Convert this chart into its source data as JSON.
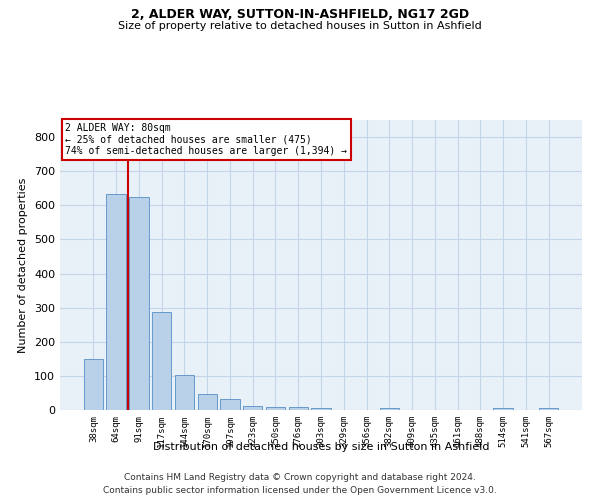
{
  "title": "2, ALDER WAY, SUTTON-IN-ASHFIELD, NG17 2GD",
  "subtitle": "Size of property relative to detached houses in Sutton in Ashfield",
  "xlabel": "Distribution of detached houses by size in Sutton in Ashfield",
  "ylabel": "Number of detached properties",
  "footer_line1": "Contains HM Land Registry data © Crown copyright and database right 2024.",
  "footer_line2": "Contains public sector information licensed under the Open Government Licence v3.0.",
  "annotation_title": "2 ALDER WAY: 80sqm",
  "annotation_line2": "← 25% of detached houses are smaller (475)",
  "annotation_line3": "74% of semi-detached houses are larger (1,394) →",
  "bar_color": "#b8d0e8",
  "bar_edge_color": "#6699cc",
  "vline_color": "#cc0000",
  "background_color": "#e8f0f8",
  "grid_color": "#c5d5e8",
  "categories": [
    "38sqm",
    "64sqm",
    "91sqm",
    "117sqm",
    "144sqm",
    "170sqm",
    "197sqm",
    "223sqm",
    "250sqm",
    "276sqm",
    "303sqm",
    "329sqm",
    "356sqm",
    "382sqm",
    "409sqm",
    "435sqm",
    "461sqm",
    "488sqm",
    "514sqm",
    "541sqm",
    "567sqm"
  ],
  "values": [
    150,
    632,
    625,
    288,
    103,
    48,
    31,
    11,
    10,
    10,
    5,
    0,
    0,
    5,
    0,
    0,
    0,
    0,
    5,
    0,
    5
  ],
  "ylim": [
    0,
    850
  ],
  "yticks": [
    0,
    100,
    200,
    300,
    400,
    500,
    600,
    700,
    800
  ],
  "vline_x_index": 1.5
}
